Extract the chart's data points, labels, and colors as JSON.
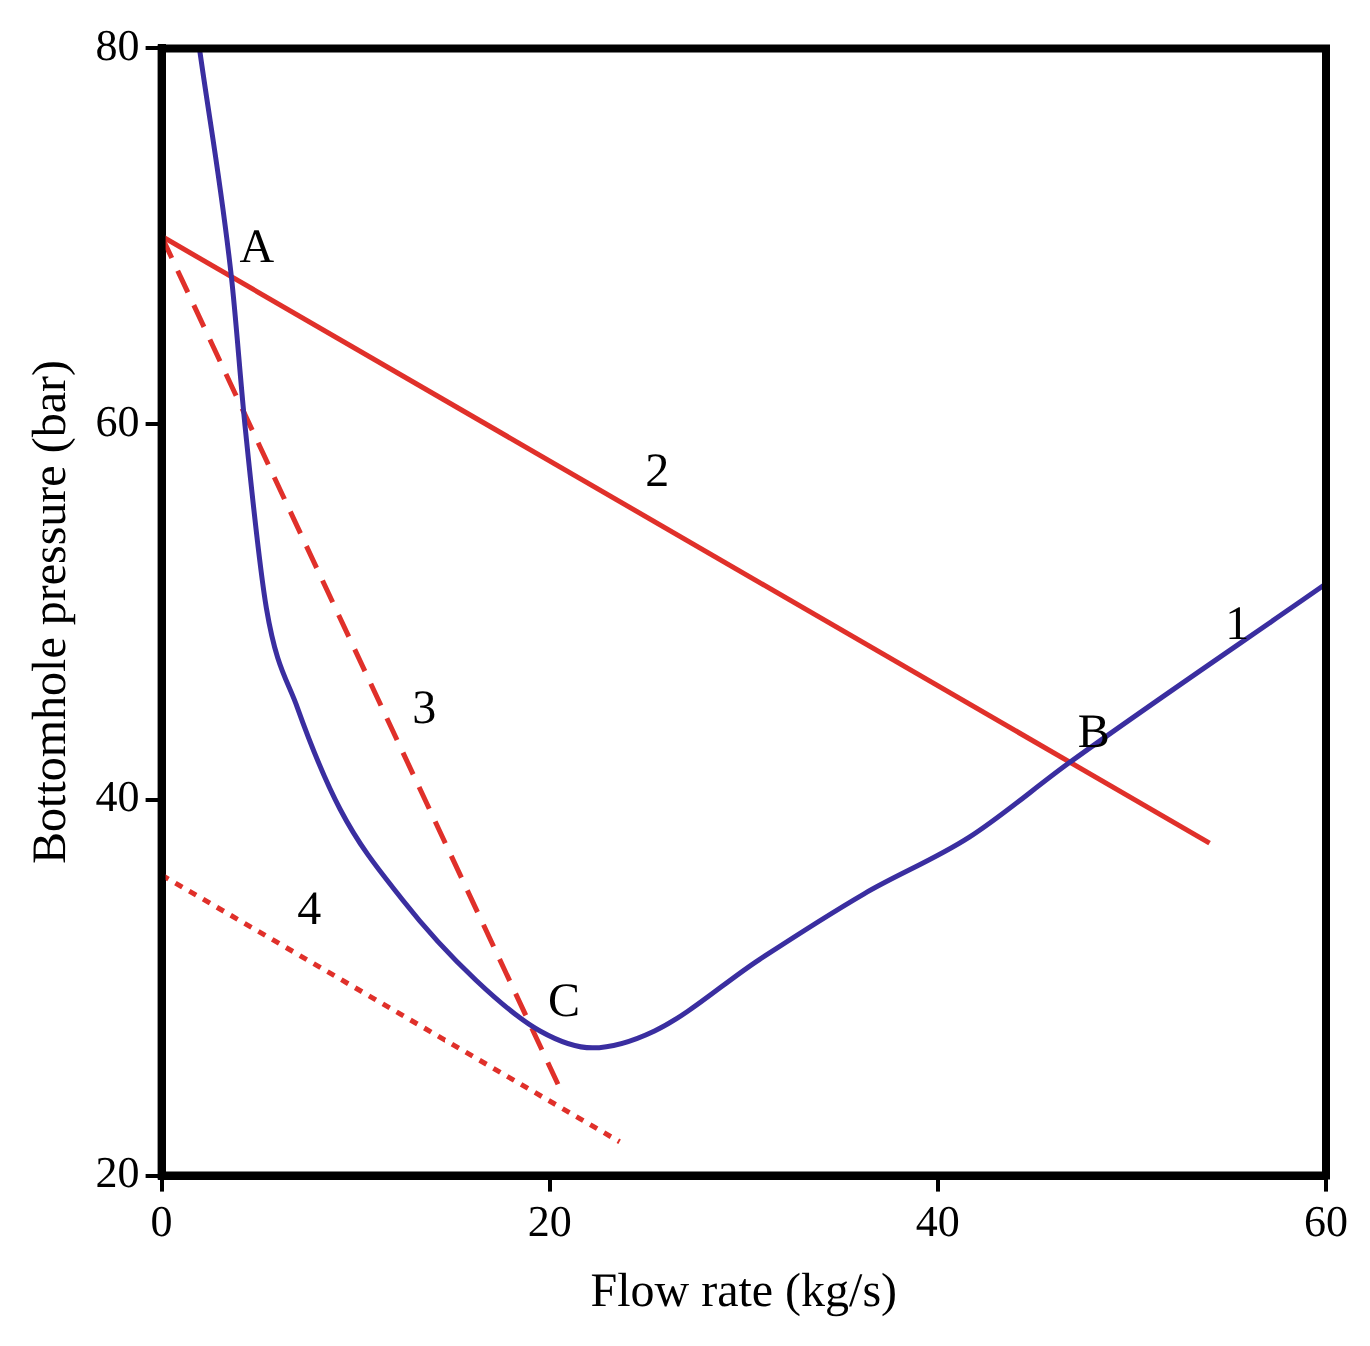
{
  "chart_data": {
    "type": "line",
    "xlabel": "Flow rate (kg/s)",
    "ylabel": "Bottomhole pressure (bar)",
    "xlim": [
      0,
      60
    ],
    "ylim": [
      20,
      80
    ],
    "xticks": [
      0,
      20,
      40,
      60
    ],
    "yticks": [
      20,
      40,
      60,
      80
    ],
    "grid": false,
    "legend": false,
    "marker": "none",
    "series": [
      {
        "name": "1",
        "color": "#3a2ea0",
        "line_style": "solid",
        "x": [
          1.95,
          3.6,
          4.3,
          5.4,
          7.0,
          9.2,
          12.4,
          16.2,
          19.5,
          22.2,
          25.4,
          30.8,
          36.2,
          41.6,
          46.8,
          60
        ],
        "values": [
          80,
          67.8,
          59.9,
          50.2,
          44.9,
          39.5,
          34.7,
          30.4,
          27.7,
          26.8,
          27.7,
          31.5,
          35.0,
          38.0,
          42.0,
          51.5
        ]
      },
      {
        "name": "2",
        "color": "#e0302a",
        "line_style": "solid",
        "x": [
          0,
          54
        ],
        "values": [
          70,
          37.7
        ]
      },
      {
        "name": "3",
        "color": "#e0302a",
        "line_style": "dashed",
        "x": [
          0,
          20.5
        ],
        "values": [
          70,
          24.7
        ]
      },
      {
        "name": "4",
        "color": "#e0302a",
        "line_style": "dotted",
        "x": [
          0,
          23.6
        ],
        "values": [
          36,
          21.8
        ]
      }
    ],
    "annotations": [
      {
        "text": "A",
        "x": 3.6,
        "y": 67.8
      },
      {
        "text": "B",
        "x": 46.8,
        "y": 42.0
      },
      {
        "text": "C",
        "x": 19.5,
        "y": 27.7
      }
    ]
  }
}
